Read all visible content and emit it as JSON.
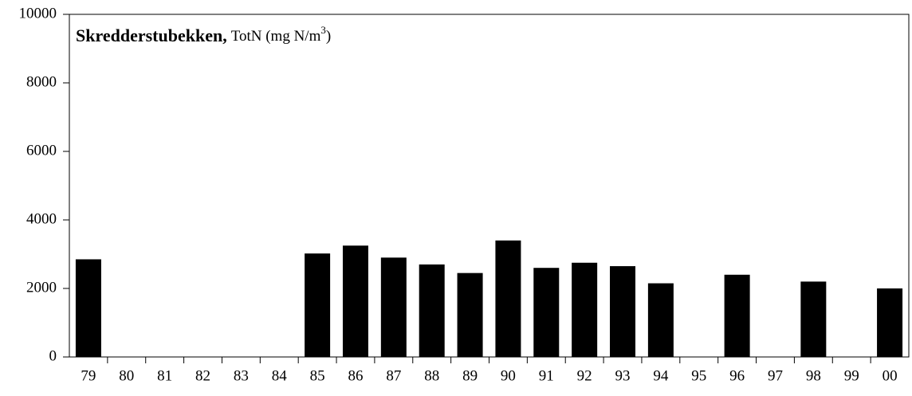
{
  "chart_data": {
    "type": "bar",
    "title_bold": "Skredderstubekken,",
    "title": "TotN (mg N/m",
    "title_superscript": "3",
    "title_end": ")",
    "categories": [
      "79",
      "80",
      "81",
      "82",
      "83",
      "84",
      "85",
      "86",
      "87",
      "88",
      "89",
      "90",
      "91",
      "92",
      "93",
      "94",
      "95",
      "96",
      "97",
      "98",
      "99",
      "00"
    ],
    "values": [
      2850,
      null,
      null,
      null,
      null,
      null,
      3020,
      3250,
      2900,
      2700,
      2450,
      3400,
      2600,
      2750,
      2650,
      2150,
      null,
      2400,
      null,
      2200,
      null,
      2000
    ],
    "color": "#000000",
    "ylim": [
      0,
      10000
    ],
    "yticks": [
      0,
      2000,
      4000,
      6000,
      8000,
      10000
    ],
    "grid": false
  }
}
